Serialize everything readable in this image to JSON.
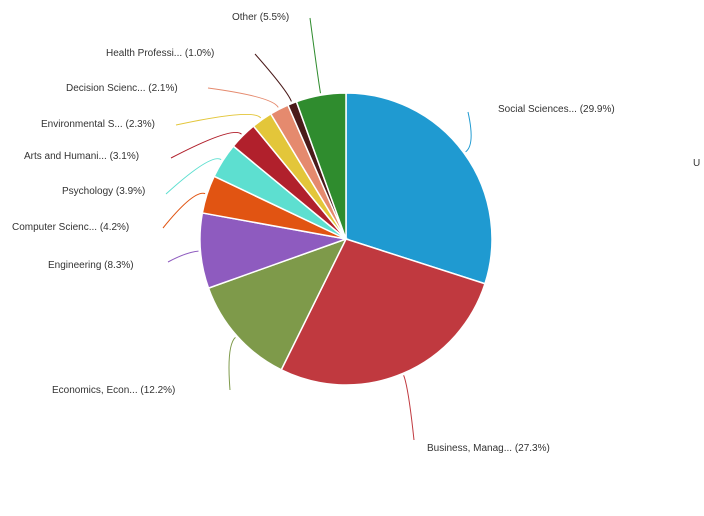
{
  "chart_data": {
    "type": "pie",
    "title": "",
    "start": "top, clockwise",
    "slices": [
      {
        "label": "Social Sciences... (29.9%)",
        "value": 29.9,
        "color": "#1f9ad1"
      },
      {
        "label": "Business, Manag... (27.3%)",
        "value": 27.3,
        "color": "#c0393f"
      },
      {
        "label": "Economics, Econ... (12.2%)",
        "value": 12.2,
        "color": "#7e9a4a"
      },
      {
        "label": "Engineering (8.3%)",
        "value": 8.3,
        "color": "#8e5bbf"
      },
      {
        "label": "Computer Scienc... (4.2%)",
        "value": 4.2,
        "color": "#e15412"
      },
      {
        "label": "Psychology (3.9%)",
        "value": 3.9,
        "color": "#5ddfd0"
      },
      {
        "label": "Arts and Humani... (3.1%)",
        "value": 3.1,
        "color": "#b1202c"
      },
      {
        "label": "Environmental S... (2.3%)",
        "value": 2.3,
        "color": "#e3c63a"
      },
      {
        "label": "Decision Scienc... (2.1%)",
        "value": 2.1,
        "color": "#e58a6e"
      },
      {
        "label": "Health Professi... (1.0%)",
        "value": 1.0,
        "color": "#4a1a1a"
      },
      {
        "label": "Other (5.5%)",
        "value": 5.5,
        "color": "#2f8c2e"
      }
    ]
  },
  "edge_text": {
    "right": "U"
  }
}
